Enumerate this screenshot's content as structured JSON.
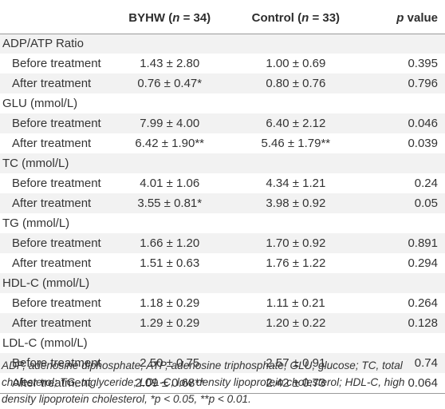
{
  "table": {
    "headers": {
      "col1": "",
      "col2_prefix": "BYHW (",
      "col2_n": "n",
      "col2_suffix": " = 34)",
      "col3_prefix": "Control (",
      "col3_n": "n",
      "col3_suffix": " = 33)",
      "col4_p": "p",
      "col4_suffix": " value"
    },
    "groups": [
      {
        "label": "ADP/ATP Ratio",
        "rows": [
          {
            "label": "Before treatment",
            "byhw": "1.43 ± 2.80",
            "control": "1.00 ± 0.69",
            "p": "0.395"
          },
          {
            "label": "After treatment",
            "byhw": "0.76 ± 0.47*",
            "control": "0.80 ± 0.76",
            "p": "0.796"
          }
        ]
      },
      {
        "label": "GLU (mmol/L)",
        "rows": [
          {
            "label": "Before treatment",
            "byhw": "7.99 ± 4.00",
            "control": "6.40 ± 2.12",
            "p": "0.046"
          },
          {
            "label": "After treatment",
            "byhw": "6.42 ± 1.90**",
            "control": "5.46 ± 1.79**",
            "p": "0.039"
          }
        ]
      },
      {
        "label": "TC (mmol/L)",
        "rows": [
          {
            "label": "Before treatment",
            "byhw": "4.01 ± 1.06",
            "control": "4.34 ± 1.21",
            "p": "0.24"
          },
          {
            "label": "After treatment",
            "byhw": "3.55 ± 0.81*",
            "control": "3.98 ± 0.92",
            "p": "0.05"
          }
        ]
      },
      {
        "label": "TG (mmol/L)",
        "rows": [
          {
            "label": "Before treatment",
            "byhw": "1.66 ± 1.20",
            "control": "1.70 ± 0.92",
            "p": "0.891"
          },
          {
            "label": "After treatment",
            "byhw": "1.51 ± 0.63",
            "control": "1.76 ± 1.22",
            "p": "0.294"
          }
        ]
      },
      {
        "label": "HDL-C (mmol/L)",
        "rows": [
          {
            "label": "Before treatment",
            "byhw": "1.18 ± 0.29",
            "control": "1.11 ± 0.21",
            "p": "0.264"
          },
          {
            "label": "After treatment",
            "byhw": "1.29 ± 0.29",
            "control": "1.20 ± 0.22",
            "p": "0.128"
          }
        ]
      },
      {
        "label": "LDL-C (mmol/L)",
        "rows": [
          {
            "label": "Before treatment",
            "byhw": "2.50 ± 0.75",
            "control": "2.57 ± 0.91",
            "p": "0.74"
          },
          {
            "label": "After treatment",
            "byhw": "2.09 ± 0.68**",
            "control": "2.42 ± 0.73",
            "p": "0.064"
          }
        ]
      }
    ]
  },
  "footnote": "ADP, adenosine diphosphate; ATP, adenosine triphosphate; GLU, glucose; TC, total cholesterol; TG, triglyceride; LDL-C, low density lipoprotein cholesterol; HDL-C, high density lipoprotein cholesterol, *p < 0.05, **p < 0.01."
}
